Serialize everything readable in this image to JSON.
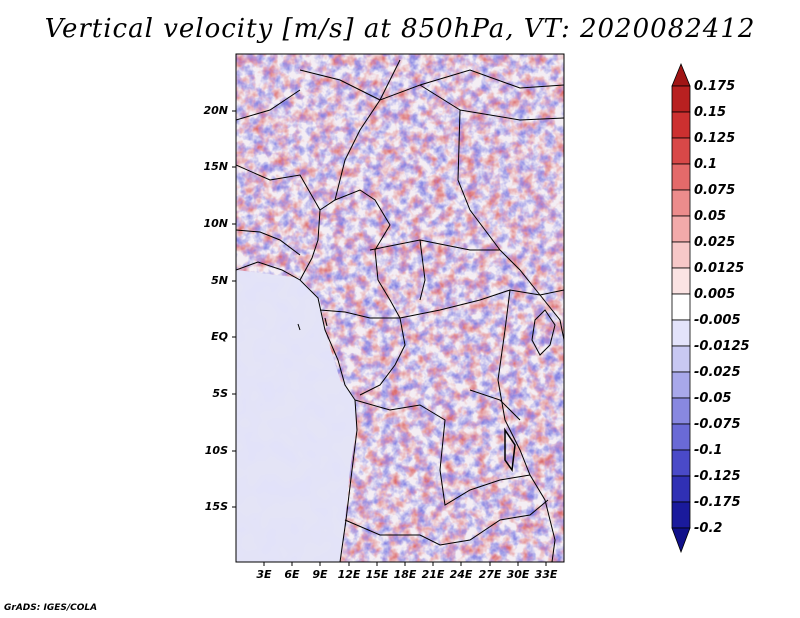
{
  "title": "Vertical velocity [m/s] at 850hPa, VT: 2020082412",
  "map": {
    "variable": "Vertical velocity",
    "units": "m/s",
    "level": "850hPa",
    "valid_time": "2020082412",
    "lat_labels": [
      "20N",
      "15N",
      "10N",
      "5N",
      "EQ",
      "5S",
      "10S",
      "15S"
    ],
    "lon_labels": [
      "3E",
      "6E",
      "9E",
      "12E",
      "15E",
      "18E",
      "21E",
      "24E",
      "27E",
      "30E",
      "33E"
    ]
  },
  "colorbar": {
    "labels": [
      "0.175",
      "0.15",
      "0.125",
      "0.1",
      "0.075",
      "0.05",
      "0.025",
      "0.0125",
      "0.005",
      "-0.005",
      "-0.0125",
      "-0.025",
      "-0.05",
      "-0.075",
      "-0.1",
      "-0.125",
      "-0.175",
      "-0.2"
    ],
    "colors": [
      "#a01515",
      "#b82020",
      "#cc3030",
      "#d84848",
      "#e46a6a",
      "#ec8c8c",
      "#f2aaaa",
      "#f7c8c8",
      "#fbe3e3",
      "#ffffff",
      "#e3e3fb",
      "#c8c8f2",
      "#a8a8ea",
      "#8888e0",
      "#6a6ad6",
      "#4a4ac8",
      "#3030b4",
      "#1a1a9c",
      "#10108a"
    ]
  },
  "credit": "GrADS: IGES/COLA"
}
